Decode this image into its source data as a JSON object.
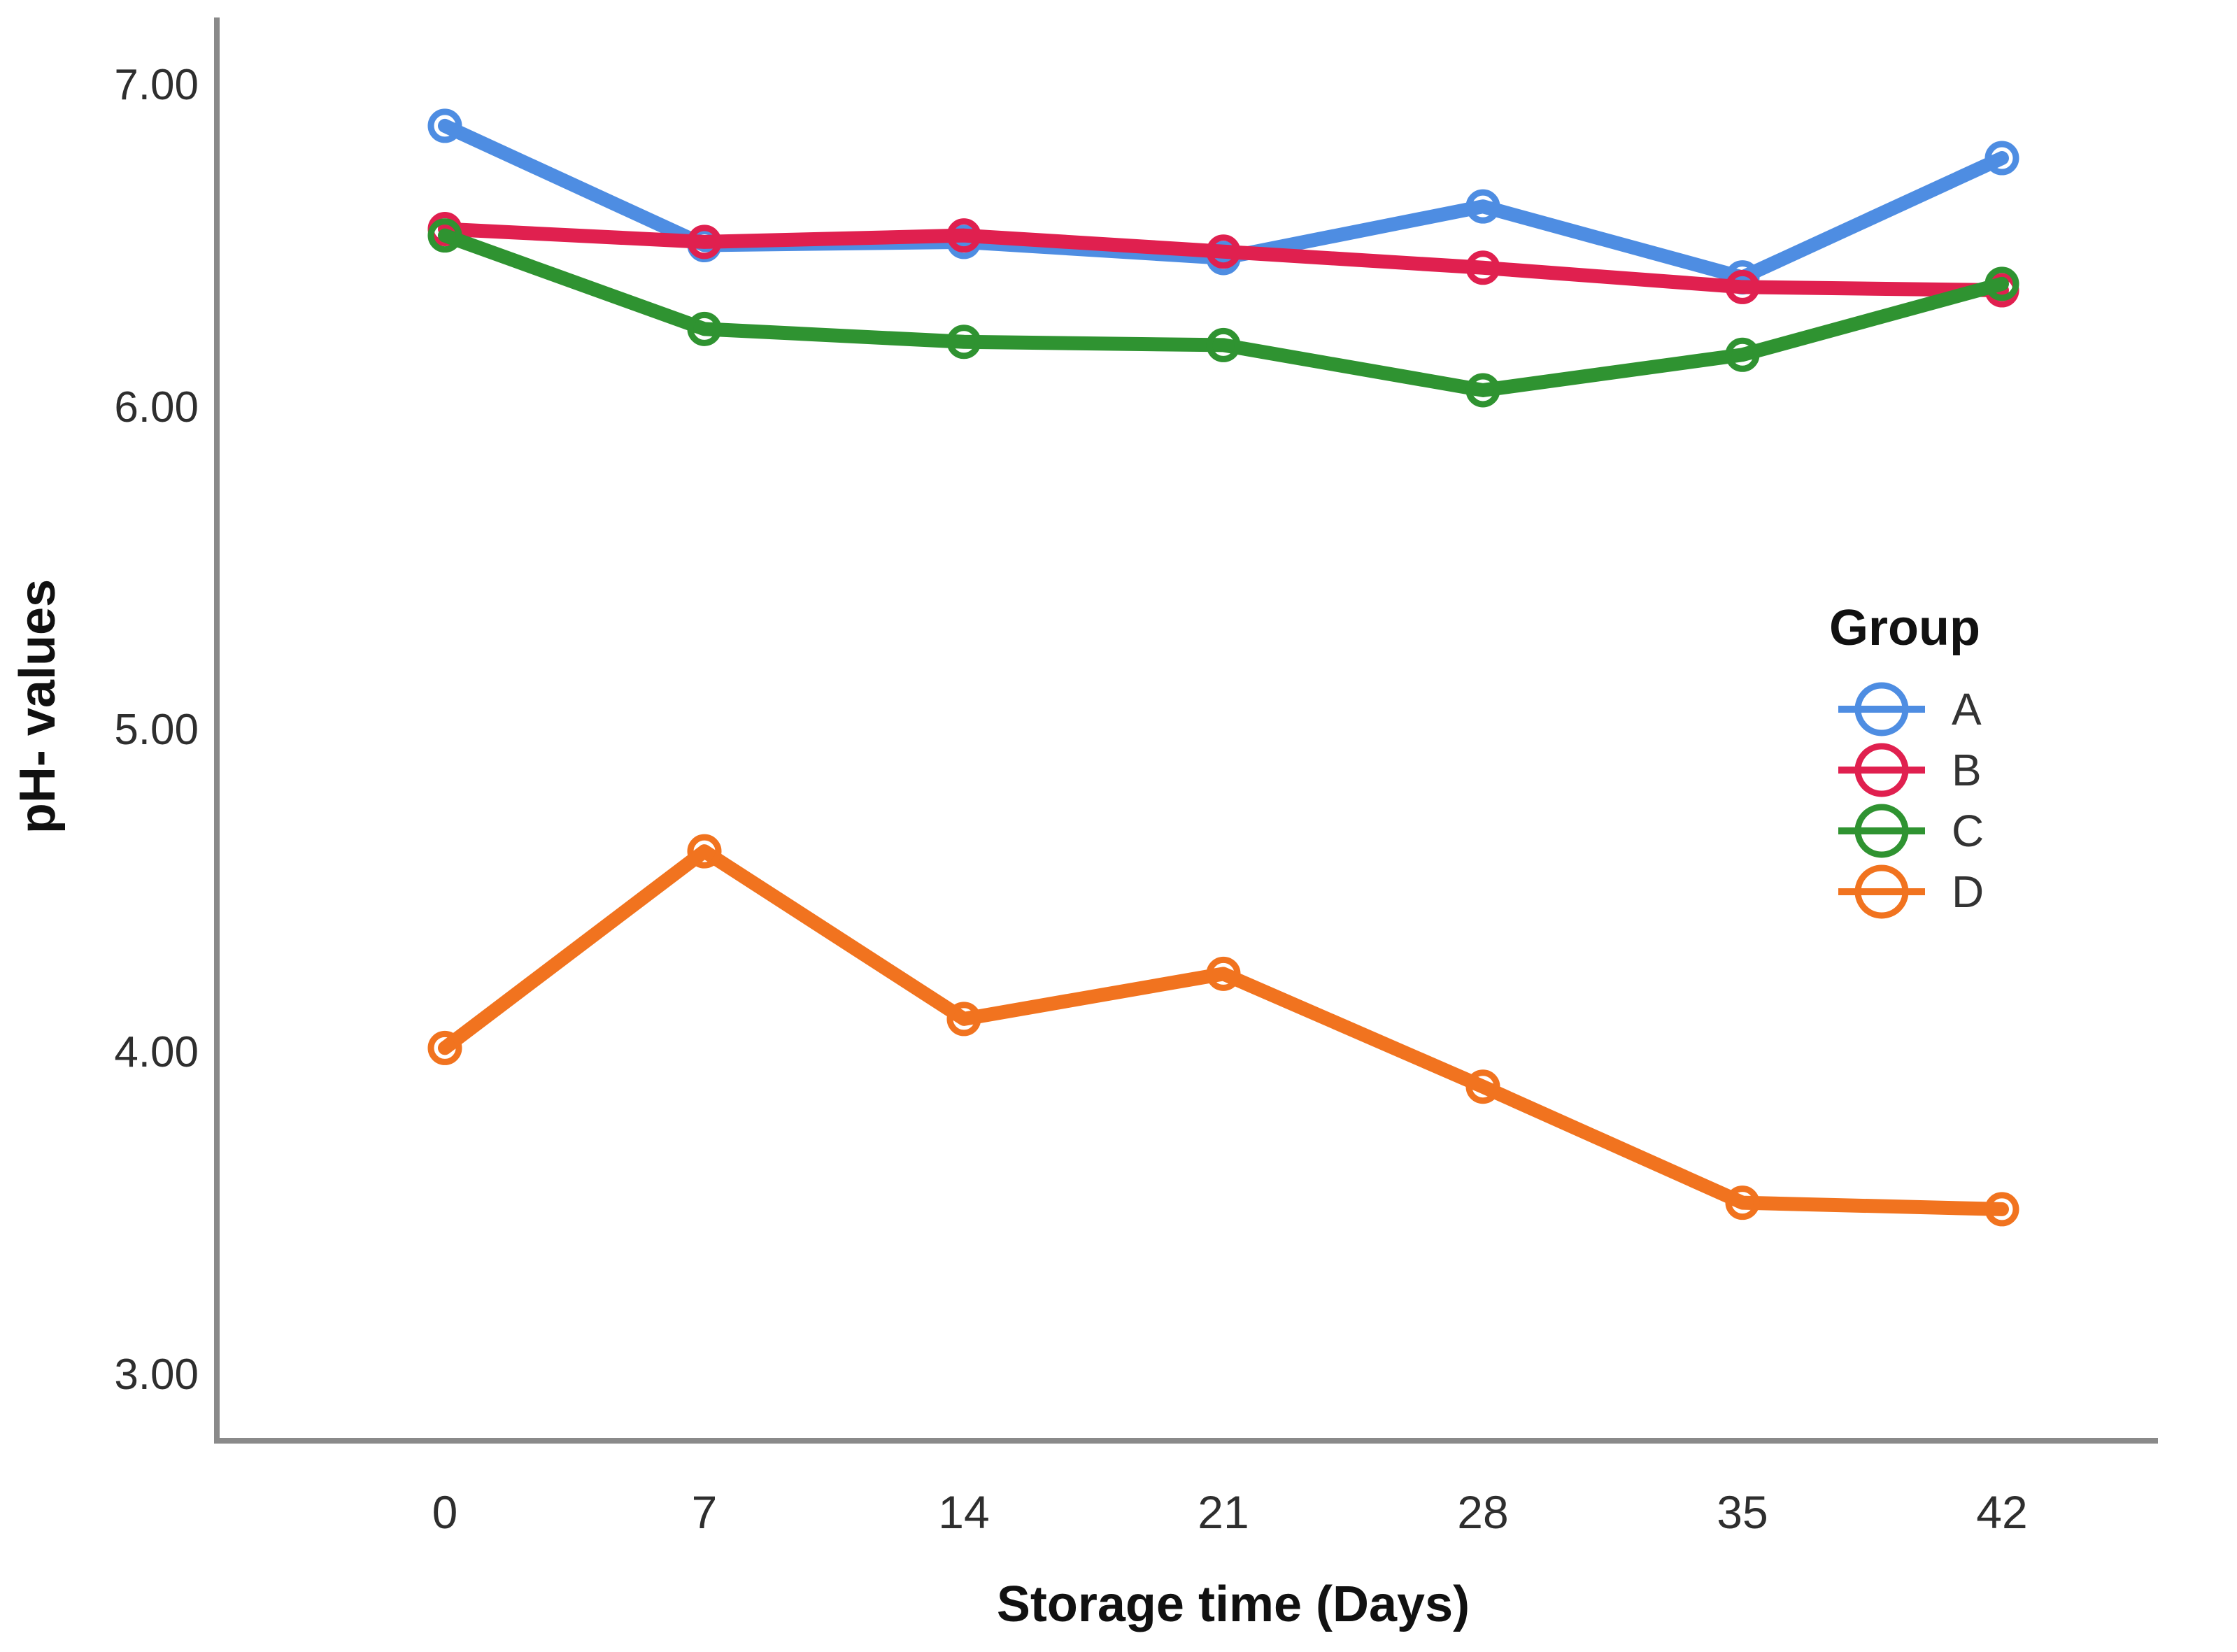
{
  "chart_data": {
    "type": "line",
    "title": "",
    "xlabel": "Storage time (Days)",
    "ylabel": "pH- values",
    "categories": [
      0,
      7,
      14,
      21,
      28,
      35,
      42
    ],
    "x_tick_labels": [
      "0",
      "7",
      "14",
      "21",
      "28",
      "35",
      "42"
    ],
    "y_tick_values": [
      7.0,
      6.0,
      5.0,
      4.0,
      3.0
    ],
    "y_tick_labels": [
      "7.00",
      "6.00",
      "5.00",
      "4.00",
      "3.00"
    ],
    "ylim": [
      2.8,
      7.2
    ],
    "grid": false,
    "legend": {
      "title": "Group",
      "position": "middle-right"
    },
    "series": [
      {
        "name": "A",
        "color": "#4e8de2",
        "marker": "open-circle",
        "values": [
          6.87,
          6.5,
          6.51,
          6.46,
          6.62,
          6.4,
          6.77
        ]
      },
      {
        "name": "B",
        "color": "#e0204f",
        "marker": "open-circle",
        "values": [
          6.55,
          6.51,
          6.53,
          6.48,
          6.43,
          6.37,
          6.36
        ]
      },
      {
        "name": "C",
        "color": "#2f9331",
        "marker": "open-circle",
        "values": [
          6.53,
          6.24,
          6.2,
          6.19,
          6.05,
          6.16,
          6.38
        ]
      },
      {
        "name": "D",
        "color": "#f1731f",
        "marker": "open-circle",
        "values": [
          4.01,
          4.62,
          4.1,
          4.24,
          3.89,
          3.53,
          3.51
        ]
      }
    ],
    "colors": {
      "axis": "#8a8a8a",
      "tick_text": "#2e2e2e",
      "title_text": "#111111",
      "legend_text": "#333333"
    }
  }
}
